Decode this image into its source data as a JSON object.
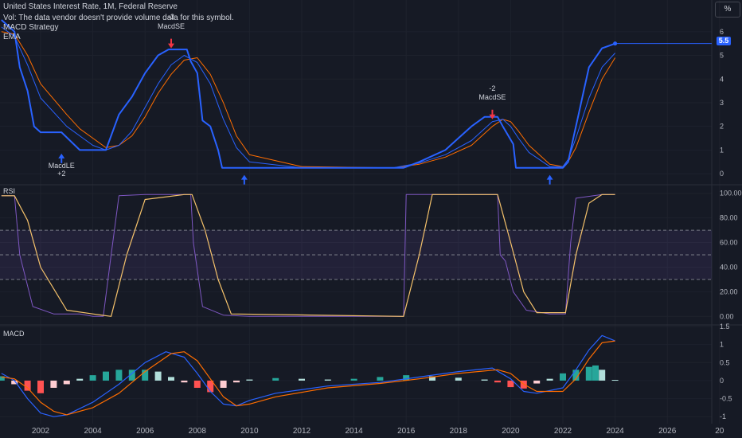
{
  "header": {
    "title": "United States Interest Rate, 1M, Federal Reserve",
    "volume_notice": "Vol: The data vendor doesn't provide volume data for this symbol.",
    "strategy": "MACD Strategy",
    "ema_label": "EMA"
  },
  "percent_button": "%",
  "price_badge": "5.5",
  "signals": {
    "short1": "MacdSE",
    "short1_qty": "-3",
    "short2": "MacdSE",
    "short2_qty": "-2",
    "long1": "MacdLE",
    "long1_qty": "+2"
  },
  "colors": {
    "background": "#161a25",
    "price_line": "#2962ff",
    "ema_fast": "#2962ff",
    "ema_slow": "#ff6d00",
    "rsi_line": "#7e57c2",
    "rsi_ma": "#f5c26b",
    "macd_line": "#2962ff",
    "signal_line": "#ff6d00",
    "hist_pos_strong": "#26a69a",
    "hist_pos_weak": "#b2dfdb",
    "hist_neg_strong": "#ff5252",
    "hist_neg_weak": "#ffcdd2",
    "long_arrow": "#2962ff",
    "short_arrow": "#f23645"
  },
  "chart_data": [
    {
      "type": "line",
      "pane": "price",
      "x_ticks": [
        "2002",
        "2004",
        "2006",
        "2008",
        "2010",
        "2012",
        "2014",
        "2016",
        "2018",
        "2020",
        "2022",
        "2024",
        "2026",
        "20"
      ],
      "y_ticks": [
        "6",
        "5",
        "4",
        "3",
        "2",
        "1",
        "0"
      ],
      "ylim": [
        -0.4,
        6.6
      ],
      "series": [
        {
          "name": "",
          "x": [
            2000.5,
            2001.0,
            2001.2,
            2001.5,
            2001.75,
            2002.0,
            2002.8,
            2003.5,
            2004.5,
            2005.0,
            2005.5,
            2006.0,
            2006.5,
            2006.9,
            2007.6,
            2007.75,
            2008.0,
            2008.2,
            2008.5,
            2008.8,
            2008.95,
            2009.0,
            2015.9,
            2016.5,
            2017.0,
            2017.5,
            2018.0,
            2018.5,
            2019.0,
            2019.5,
            2019.7,
            2020.1,
            2020.2,
            2022.0,
            2022.2,
            2022.4,
            2022.6,
            2022.8,
            2023.0,
            2023.5,
            2024.0
          ],
          "y": [
            6.5,
            6.0,
            4.5,
            3.5,
            2.0,
            1.75,
            1.75,
            1.0,
            1.0,
            2.5,
            3.25,
            4.25,
            5.0,
            5.25,
            5.25,
            4.75,
            4.25,
            2.25,
            2.0,
            1.0,
            0.25,
            0.25,
            0.25,
            0.5,
            0.75,
            1.0,
            1.5,
            2.0,
            2.4,
            2.4,
            2.0,
            1.25,
            0.25,
            0.25,
            0.5,
            1.5,
            2.5,
            3.5,
            4.5,
            5.3,
            5.5
          ]
        },
        {
          "name": "",
          "x": [
            2000.5,
            2001.0,
            2001.5,
            2002.0,
            2003.0,
            2003.5,
            2004.0,
            2004.5,
            2005.0,
            2005.5,
            2006.0,
            2006.5,
            2007.0,
            2007.5,
            2008.0,
            2008.5,
            2009.0,
            2009.5,
            2010.0,
            2012.0,
            2015.5,
            2016.5,
            2017.5,
            2018.5,
            2019.3,
            2019.7,
            2020.0,
            2020.3,
            2020.7,
            2021.5,
            2022.0,
            2022.2,
            2022.5,
            2023.0,
            2023.5,
            2024.0
          ],
          "y": [
            6.2,
            5.8,
            4.6,
            3.2,
            2.0,
            1.6,
            1.2,
            1.0,
            1.2,
            1.8,
            2.8,
            3.8,
            4.6,
            5.0,
            4.7,
            3.8,
            2.3,
            1.1,
            0.5,
            0.25,
            0.25,
            0.45,
            0.8,
            1.4,
            2.2,
            2.3,
            2.0,
            1.5,
            0.9,
            0.3,
            0.3,
            0.6,
            1.5,
            3.2,
            4.5,
            5.1
          ]
        },
        {
          "name": "",
          "x": [
            2000.5,
            2001.0,
            2001.5,
            2002.0,
            2003.0,
            2003.5,
            2004.0,
            2004.5,
            2005.0,
            2005.5,
            2006.0,
            2006.5,
            2007.0,
            2007.5,
            2008.0,
            2008.5,
            2009.0,
            2009.5,
            2010.0,
            2012.0,
            2015.5,
            2016.5,
            2017.5,
            2018.5,
            2019.3,
            2019.7,
            2020.0,
            2020.3,
            2020.7,
            2021.5,
            2022.0,
            2022.2,
            2022.5,
            2023.0,
            2023.5,
            2024.0
          ],
          "y": [
            6.0,
            5.9,
            5.0,
            3.8,
            2.5,
            1.9,
            1.5,
            1.1,
            1.2,
            1.6,
            2.4,
            3.4,
            4.2,
            4.8,
            4.9,
            4.2,
            3.0,
            1.6,
            0.8,
            0.3,
            0.25,
            0.4,
            0.7,
            1.2,
            2.0,
            2.3,
            2.2,
            1.8,
            1.2,
            0.4,
            0.3,
            0.5,
            1.1,
            2.6,
            4.0,
            4.9
          ]
        }
      ]
    },
    {
      "type": "line",
      "pane": "rsi",
      "label": "RSI",
      "y_ticks": [
        "100.00",
        "80.00",
        "60.00",
        "40.00",
        "20.00",
        "0.00"
      ],
      "ylim": [
        -5,
        105
      ],
      "bands": [
        70,
        50,
        30
      ],
      "series": [
        {
          "name": "",
          "x": [
            2000.5,
            2001.0,
            2001.2,
            2001.7,
            2002.5,
            2003.5,
            2004.0,
            2004.4,
            2004.7,
            2005.0,
            2006.0,
            2007.0,
            2007.75,
            2007.85,
            2008.2,
            2009.0,
            2010.0,
            2015.9,
            2016.0,
            2019.5,
            2019.6,
            2019.8,
            2020.1,
            2020.6,
            2021.5,
            2022.1,
            2022.3,
            2022.5,
            2023.5,
            2024.0
          ],
          "y": [
            98,
            98,
            50,
            8,
            2,
            2,
            0,
            0,
            50,
            98,
            99,
            99,
            99,
            60,
            8,
            1,
            0,
            0,
            99,
            99,
            50,
            45,
            20,
            5,
            2,
            2,
            60,
            96,
            99,
            99
          ]
        },
        {
          "name": "",
          "x": [
            2000.5,
            2001.0,
            2001.5,
            2002.0,
            2003.0,
            2004.0,
            2004.7,
            2005.3,
            2006.0,
            2007.5,
            2007.8,
            2008.3,
            2008.8,
            2009.3,
            2015.9,
            2016.5,
            2017.0,
            2019.5,
            2020.0,
            2020.5,
            2021.0,
            2022.1,
            2022.5,
            2023.0,
            2023.5,
            2024.0
          ],
          "y": [
            98,
            98,
            78,
            40,
            5,
            2,
            0,
            50,
            95,
            99,
            99,
            70,
            30,
            2,
            0,
            50,
            99,
            99,
            60,
            20,
            3,
            3,
            50,
            92,
            99,
            99
          ]
        }
      ]
    },
    {
      "type": "bar",
      "pane": "macd",
      "label": "MACD",
      "y_ticks": [
        "1.5",
        "1",
        "0.5",
        "0",
        "-0.5",
        "-1"
      ],
      "ylim": [
        -1.15,
        1.5
      ],
      "histogram": {
        "x": [
          2000.5,
          2001.0,
          2001.5,
          2002.0,
          2002.5,
          2003.0,
          2003.5,
          2004.0,
          2004.5,
          2005.0,
          2005.5,
          2006.0,
          2006.5,
          2007.0,
          2007.5,
          2008.0,
          2008.5,
          2009.0,
          2009.5,
          2010.0,
          2011.0,
          2012.0,
          2013.0,
          2014.0,
          2015.0,
          2016.0,
          2017.0,
          2018.0,
          2019.0,
          2019.5,
          2020.0,
          2020.5,
          2021.0,
          2021.5,
          2022.0,
          2022.5,
          2023.0,
          2023.25,
          2023.5,
          2024.0
        ],
        "values": [
          0.12,
          -0.1,
          -0.28,
          -0.35,
          -0.2,
          -0.1,
          0.05,
          0.15,
          0.25,
          0.3,
          0.3,
          0.3,
          0.25,
          0.1,
          -0.05,
          -0.2,
          -0.32,
          -0.2,
          -0.05,
          0.03,
          0.07,
          0.05,
          0.03,
          0.05,
          0.1,
          0.15,
          0.12,
          0.08,
          0.03,
          -0.05,
          -0.18,
          -0.22,
          -0.08,
          0.05,
          0.2,
          0.3,
          0.38,
          0.42,
          0.3,
          0.02
        ]
      },
      "series": [
        {
          "name": "",
          "x": [
            2000.5,
            2001.0,
            2001.5,
            2002.0,
            2002.5,
            2003.0,
            2004.0,
            2005.0,
            2006.0,
            2006.8,
            2007.5,
            2008.0,
            2008.5,
            2009.0,
            2009.5,
            2010.0,
            2011.0,
            2013.0,
            2015.0,
            2016.5,
            2018.0,
            2019.3,
            2020.0,
            2020.5,
            2021.0,
            2022.0,
            2022.5,
            2023.0,
            2023.5,
            2024.0
          ],
          "y": [
            0.2,
            0.0,
            -0.5,
            -0.9,
            -1.0,
            -0.95,
            -0.6,
            -0.1,
            0.5,
            0.8,
            0.65,
            0.2,
            -0.3,
            -0.65,
            -0.7,
            -0.55,
            -0.35,
            -0.15,
            -0.05,
            0.1,
            0.25,
            0.35,
            0.05,
            -0.3,
            -0.35,
            -0.2,
            0.3,
            0.85,
            1.25,
            1.1
          ]
        },
        {
          "name": "",
          "x": [
            2000.5,
            2001.0,
            2001.5,
            2002.0,
            2002.5,
            2003.0,
            2004.0,
            2005.0,
            2006.0,
            2007.0,
            2007.5,
            2008.0,
            2008.5,
            2009.0,
            2009.5,
            2010.0,
            2011.0,
            2013.0,
            2015.0,
            2016.5,
            2018.0,
            2019.5,
            2020.0,
            2020.5,
            2021.0,
            2022.0,
            2022.5,
            2023.0,
            2023.5,
            2024.0
          ],
          "y": [
            0.1,
            0.05,
            -0.2,
            -0.6,
            -0.85,
            -0.95,
            -0.75,
            -0.35,
            0.25,
            0.75,
            0.8,
            0.55,
            0.05,
            -0.45,
            -0.7,
            -0.65,
            -0.45,
            -0.2,
            -0.08,
            0.05,
            0.2,
            0.3,
            0.2,
            -0.1,
            -0.3,
            -0.3,
            0.05,
            0.6,
            1.05,
            1.1
          ]
        }
      ]
    }
  ]
}
